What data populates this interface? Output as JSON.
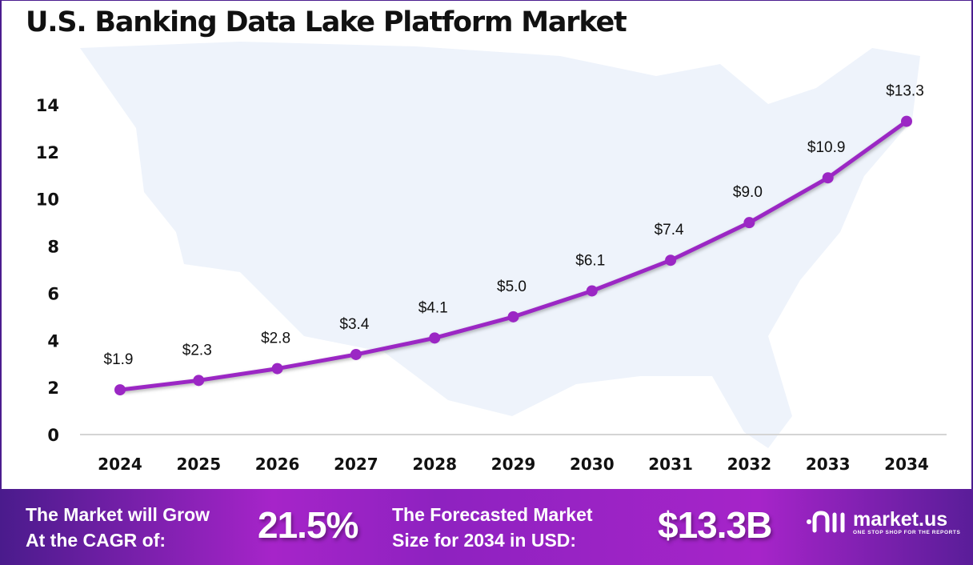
{
  "chart_data": {
    "type": "line",
    "title": "U.S. Banking Data Lake Platform Market",
    "xlabel": "",
    "ylabel": "",
    "categories": [
      "2024",
      "2025",
      "2026",
      "2027",
      "2028",
      "2029",
      "2030",
      "2031",
      "2032",
      "2033",
      "2034"
    ],
    "values": [
      1.9,
      2.3,
      2.8,
      3.4,
      4.1,
      5.0,
      6.1,
      7.4,
      9.0,
      10.9,
      13.3
    ],
    "data_labels": [
      "$1.9",
      "$2.3",
      "$2.8",
      "$3.4",
      "$4.1",
      "$5.0",
      "$6.1",
      "$7.4",
      "$9.0",
      "$10.9",
      "$13.3"
    ],
    "yticks": [
      "0",
      "2",
      "4",
      "6",
      "8",
      "10",
      "12",
      "14"
    ],
    "ylim": [
      0,
      14
    ],
    "grid": false,
    "legend": "none",
    "line_color": "#9b27c4",
    "background": "U.S. map silhouette"
  },
  "footer": {
    "cagr_text_line1": "The Market will Grow",
    "cagr_text_line2": "At the CAGR of:",
    "cagr_value": "21.5%",
    "forecast_text_line1": "The Forecasted Market",
    "forecast_text_line2": "Size for 2034 in USD:",
    "forecast_value": "$13.3B",
    "logo_name": "market.us",
    "logo_tagline": "ONE STOP SHOP FOR THE REPORTS"
  }
}
